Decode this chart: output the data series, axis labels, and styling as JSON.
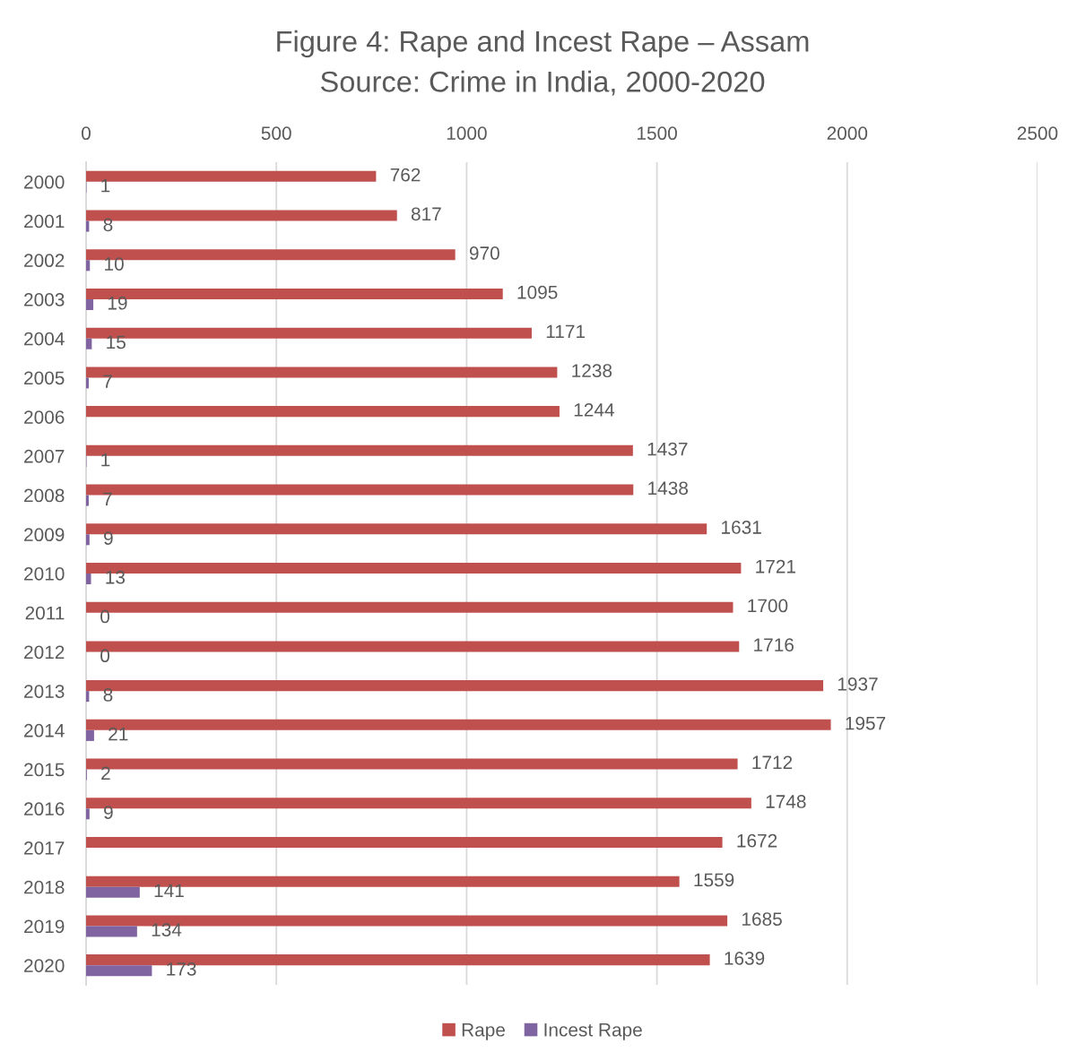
{
  "chart_data": {
    "type": "bar",
    "orientation": "horizontal",
    "title": "Figure 4: Rape and Incest Rape – Assam",
    "subtitle": "Source: Crime in India, 2000-2020",
    "categories": [
      "2000",
      "2001",
      "2002",
      "2003",
      "2004",
      "2005",
      "2006",
      "2007",
      "2008",
      "2009",
      "2010",
      "2011",
      "2012",
      "2013",
      "2014",
      "2015",
      "2016",
      "2017",
      "2018",
      "2019",
      "2020"
    ],
    "series": [
      {
        "name": "Rape",
        "color": "#c0504d",
        "values": [
          762,
          817,
          970,
          1095,
          1171,
          1238,
          1244,
          1437,
          1438,
          1631,
          1721,
          1700,
          1716,
          1937,
          1957,
          1712,
          1748,
          1672,
          1559,
          1685,
          1639
        ]
      },
      {
        "name": "Incest Rape",
        "color": "#8064a2",
        "values": [
          1,
          8,
          10,
          19,
          15,
          7,
          null,
          1,
          7,
          9,
          13,
          0,
          0,
          8,
          21,
          2,
          9,
          null,
          141,
          134,
          173
        ]
      }
    ],
    "xlim": [
      0,
      2500
    ],
    "xticks": [
      0,
      500,
      1000,
      1500,
      2000,
      2500
    ],
    "grid": "x",
    "legend": "bottom",
    "data_labels": true
  }
}
